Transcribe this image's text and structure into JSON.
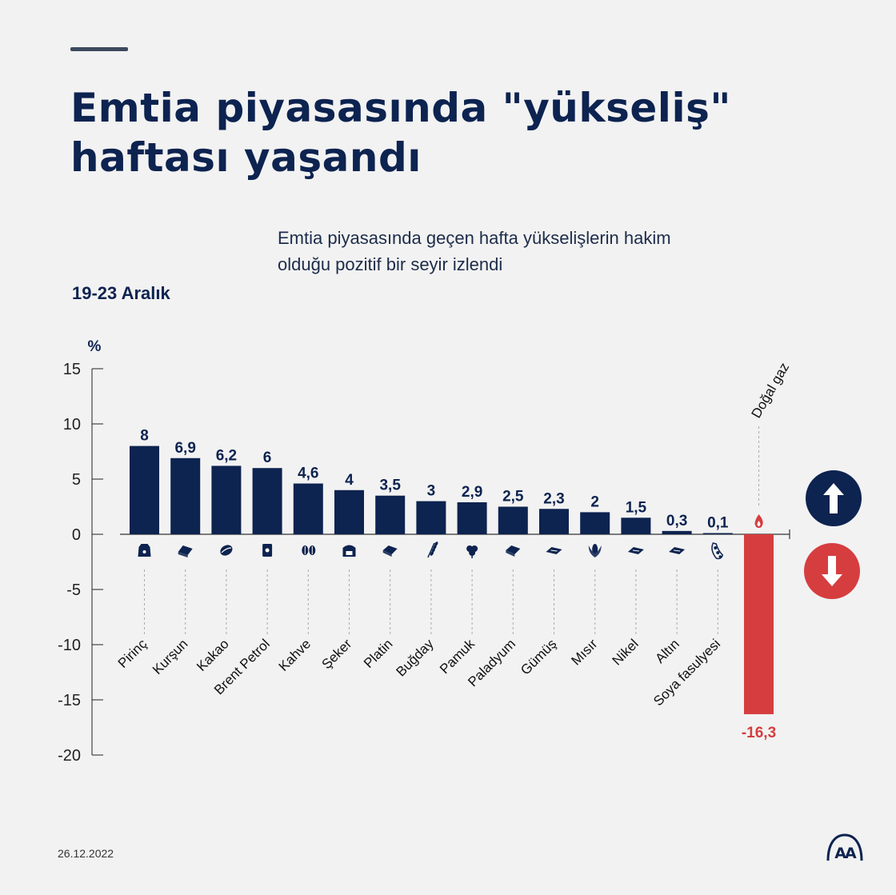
{
  "header": {
    "title_line1": "Emtia piyasasında \"yükseliş\"",
    "title_line2": "haftası yaşandı",
    "subtitle_line1": "Emtia piyasasında geçen hafta yükselişlerin hakim",
    "subtitle_line2": "olduğu pozitif bir seyir izlendi",
    "period": "19-23 Aralık"
  },
  "footer": {
    "date": "26.12.2022",
    "logo_text": "AA"
  },
  "colors": {
    "positive": "#0d2350",
    "negative": "#d63d3f",
    "text": "#0d2350"
  },
  "chart_data": {
    "type": "bar",
    "title": "Emtia piyasasında \"yükseliş\" haftası yaşandı",
    "ylabel": "%",
    "ylim": [
      -20,
      15
    ],
    "yticks": [
      15,
      10,
      5,
      0,
      -5,
      -10,
      -15,
      -20
    ],
    "grid": false,
    "categories": [
      "Pirinç",
      "Kurşun",
      "Kakao",
      "Brent Petrol",
      "Kahve",
      "Şeker",
      "Platin",
      "Buğday",
      "Pamuk",
      "Paladyum",
      "Gümüş",
      "Mısır",
      "Nikel",
      "Altın",
      "Soya fasulyesi",
      "Doğal gaz"
    ],
    "values": [
      8,
      6.9,
      6.2,
      6,
      4.6,
      4,
      3.5,
      3,
      2.9,
      2.5,
      2.3,
      2,
      1.5,
      0.3,
      0.1,
      -16.3
    ],
    "value_labels": [
      "8",
      "6,9",
      "6,2",
      "6",
      "4,6",
      "4",
      "3,5",
      "3",
      "2,9",
      "2,5",
      "2,3",
      "2",
      "1,5",
      "0,3",
      "0,1",
      "-16,3"
    ],
    "icons": [
      "rice-sack-icon",
      "lead-ingot-icon",
      "cocoa-pod-icon",
      "oil-barrel-icon",
      "coffee-bean-icon",
      "sugar-sack-icon",
      "platinum-bar-icon",
      "wheat-icon",
      "cotton-icon",
      "palladium-bar-icon",
      "silver-bar-icon",
      "corn-icon",
      "nickel-bar-icon",
      "gold-bar-icon",
      "soybean-icon",
      "gas-flame-icon"
    ],
    "legend": {
      "up": "arrow-up-icon",
      "down": "arrow-down-icon"
    }
  }
}
